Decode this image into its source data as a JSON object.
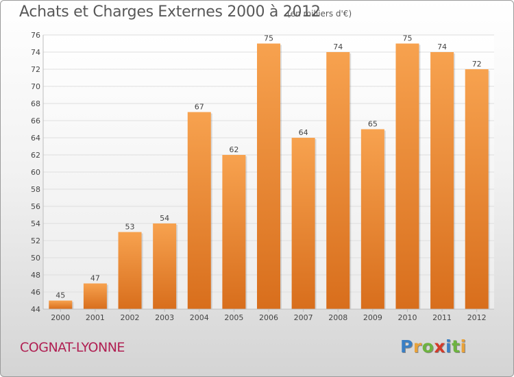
{
  "title": "Achats et Charges Externes 2000 à 2012",
  "unit": "(en milliers d'€)",
  "commune": "COGNAT-LYONNE",
  "logo": {
    "text": "Proxiti",
    "letter_colors": [
      "#3a7fc4",
      "#e8a23a",
      "#6db33f",
      "#d23a2a",
      "#3a7fc4",
      "#6db33f",
      "#e8a23a"
    ]
  },
  "colors": {
    "bar_top": "#f7a24f",
    "bar_bottom": "#d86e1c",
    "grid": "#dedede",
    "title": "#585858",
    "commune": "#b01f52"
  },
  "chart_data": {
    "type": "bar",
    "title": "Achats et Charges Externes 2000 à 2012",
    "subtitle": "(en milliers d'€)",
    "xlabel": "",
    "ylabel": "",
    "categories": [
      "2000",
      "2001",
      "2002",
      "2003",
      "2004",
      "2005",
      "2006",
      "2007",
      "2008",
      "2009",
      "2010",
      "2011",
      "2012"
    ],
    "values": [
      45,
      47,
      53,
      54,
      67,
      62,
      75,
      64,
      74,
      65,
      75,
      74,
      72
    ],
    "ylim": [
      44,
      76
    ],
    "yticks": [
      44,
      46,
      48,
      50,
      52,
      54,
      56,
      58,
      60,
      62,
      64,
      66,
      68,
      70,
      72,
      74,
      76
    ],
    "grid": true,
    "data_labels": true
  }
}
